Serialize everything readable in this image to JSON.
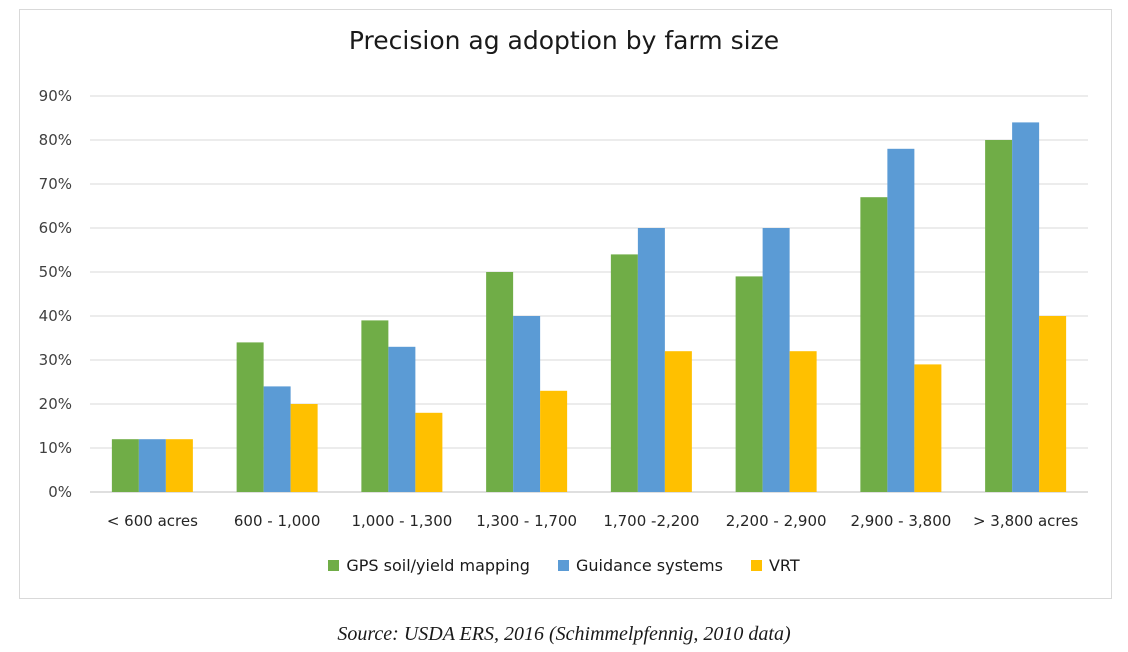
{
  "source_caption": "Source: USDA ERS, 2016 (Schimmelpfennig, 2010 data)",
  "chart_data": {
    "type": "bar",
    "title": "Precision ag adoption by farm size",
    "categories": [
      "< 600 acres",
      "600 - 1,000",
      "1,000 - 1,300",
      "1,300 - 1,700",
      "1,700 -2,200",
      "2,200 - 2,900",
      "2,900 - 3,800",
      "> 3,800 acres"
    ],
    "series": [
      {
        "name": "GPS soil/yield mapping",
        "color": "#70ad47",
        "values": [
          12,
          34,
          39,
          50,
          54,
          49,
          67,
          80
        ]
      },
      {
        "name": "Guidance systems",
        "color": "#5b9bd5",
        "values": [
          12,
          24,
          33,
          40,
          60,
          60,
          78,
          84
        ]
      },
      {
        "name": "VRT",
        "color": "#ffc000",
        "values": [
          12,
          20,
          18,
          23,
          32,
          32,
          29,
          40
        ]
      }
    ],
    "ylim": [
      0,
      90
    ],
    "yticks": [
      0,
      10,
      20,
      30,
      40,
      50,
      60,
      70,
      80,
      90
    ],
    "ytick_labels": [
      "0%",
      "10%",
      "20%",
      "30%",
      "40%",
      "50%",
      "60%",
      "70%",
      "80%",
      "90%"
    ],
    "xlabel": "",
    "ylabel": "",
    "grid": true,
    "legend_position": "bottom"
  }
}
